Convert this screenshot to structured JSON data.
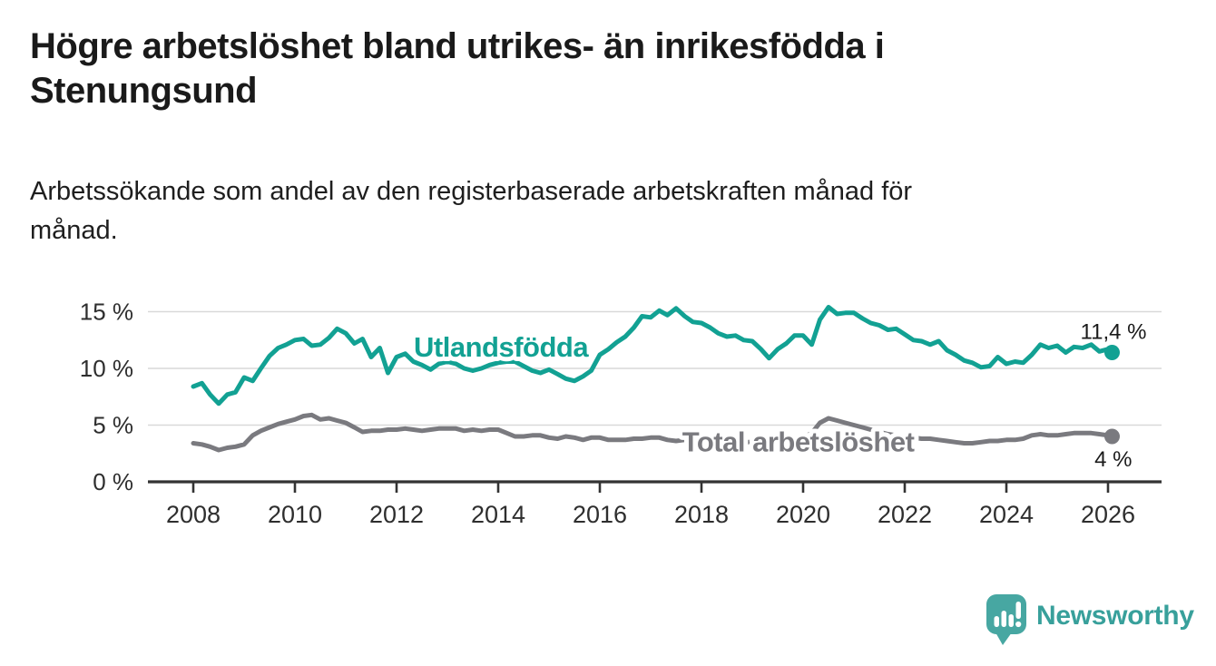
{
  "title": {
    "full": "Högre arbetslöshet bland utrikes- än inrikesfödda i Stenungsund",
    "line1": "Högre arbetslöshet bland utrikes- än inrikesfödda i",
    "line2": "Stenungsund"
  },
  "subtitle": {
    "full": "Arbetssökande som andel av den registerbaserade arbetskraften månad för månad.",
    "line1": "Arbetssökande som andel av den registerbaserade arbetskraften månad för",
    "line2": "månad."
  },
  "branding": {
    "name": "Newsworthy",
    "logo_color": "#47A7A2",
    "text_color": "#38A09B"
  },
  "chart_data": {
    "type": "line",
    "title": "Högre arbetslöshet bland utrikes- än inrikesfödda i Stenungsund",
    "subtitle": "Arbetssökande som andel av den registerbaserade arbetskraften månad för månad.",
    "xlabel": "",
    "ylabel": "",
    "x_range": [
      2007.1,
      2027.05
    ],
    "ylim": [
      0,
      16.5
    ],
    "grid": "horizontal",
    "legend_position": "inline-labels",
    "style": {
      "grid_color": "#d9d9d9",
      "axis_color": "#333333",
      "axis_text_color": "#2e2e2e",
      "annotation_text_color": "#1a1a1a"
    },
    "x_axis": {
      "ticks": [
        2008,
        2010,
        2012,
        2014,
        2016,
        2018,
        2020,
        2022,
        2024,
        2026
      ]
    },
    "y_axis": {
      "ticks": [
        {
          "value": 0,
          "label": "0 %"
        },
        {
          "value": 5,
          "label": "5 %"
        },
        {
          "value": 10,
          "label": "10 %"
        },
        {
          "value": 15,
          "label": "15 %"
        }
      ]
    },
    "series": [
      {
        "id": "utlandsfodda",
        "name": "Utlandsfödda",
        "color": "#12A193",
        "end_label": "11,4 %",
        "end_value": 11.4,
        "name_label": {
          "year": 2012.34,
          "value": 11.05
        },
        "end_label_offset": [
          38,
          -15
        ],
        "points": [
          [
            2008.0,
            8.4
          ],
          [
            2008.17,
            8.7
          ],
          [
            2008.33,
            7.7
          ],
          [
            2008.5,
            6.9
          ],
          [
            2008.67,
            7.7
          ],
          [
            2008.83,
            7.9
          ],
          [
            2009.0,
            9.2
          ],
          [
            2009.17,
            8.9
          ],
          [
            2009.33,
            10.0
          ],
          [
            2009.5,
            11.1
          ],
          [
            2009.67,
            11.8
          ],
          [
            2009.83,
            12.1
          ],
          [
            2010.0,
            12.5
          ],
          [
            2010.17,
            12.6
          ],
          [
            2010.33,
            12.0
          ],
          [
            2010.5,
            12.1
          ],
          [
            2010.67,
            12.7
          ],
          [
            2010.83,
            13.5
          ],
          [
            2011.0,
            13.1
          ],
          [
            2011.17,
            12.2
          ],
          [
            2011.33,
            12.6
          ],
          [
            2011.5,
            11.0
          ],
          [
            2011.67,
            11.8
          ],
          [
            2011.83,
            9.6
          ],
          [
            2012.0,
            11.0
          ],
          [
            2012.17,
            11.3
          ],
          [
            2012.33,
            10.6
          ],
          [
            2012.5,
            10.3
          ],
          [
            2012.67,
            9.9
          ],
          [
            2012.83,
            10.4
          ],
          [
            2013.0,
            10.6
          ],
          [
            2013.17,
            10.4
          ],
          [
            2013.33,
            10.0
          ],
          [
            2013.5,
            9.8
          ],
          [
            2013.67,
            10.0
          ],
          [
            2013.83,
            10.3
          ],
          [
            2014.0,
            10.5
          ],
          [
            2014.17,
            10.6
          ],
          [
            2014.33,
            10.6
          ],
          [
            2014.5,
            10.2
          ],
          [
            2014.67,
            9.8
          ],
          [
            2014.83,
            9.6
          ],
          [
            2015.0,
            9.9
          ],
          [
            2015.17,
            9.5
          ],
          [
            2015.33,
            9.1
          ],
          [
            2015.5,
            8.9
          ],
          [
            2015.67,
            9.3
          ],
          [
            2015.83,
            9.8
          ],
          [
            2016.0,
            11.2
          ],
          [
            2016.17,
            11.7
          ],
          [
            2016.33,
            12.3
          ],
          [
            2016.5,
            12.8
          ],
          [
            2016.67,
            13.6
          ],
          [
            2016.83,
            14.6
          ],
          [
            2017.0,
            14.5
          ],
          [
            2017.17,
            15.1
          ],
          [
            2017.33,
            14.7
          ],
          [
            2017.5,
            15.3
          ],
          [
            2017.67,
            14.6
          ],
          [
            2017.83,
            14.1
          ],
          [
            2018.0,
            14.0
          ],
          [
            2018.17,
            13.6
          ],
          [
            2018.33,
            13.1
          ],
          [
            2018.5,
            12.8
          ],
          [
            2018.67,
            12.9
          ],
          [
            2018.83,
            12.5
          ],
          [
            2019.0,
            12.4
          ],
          [
            2019.17,
            11.7
          ],
          [
            2019.33,
            10.9
          ],
          [
            2019.5,
            11.7
          ],
          [
            2019.67,
            12.2
          ],
          [
            2019.83,
            12.9
          ],
          [
            2020.0,
            12.9
          ],
          [
            2020.17,
            12.1
          ],
          [
            2020.33,
            14.3
          ],
          [
            2020.5,
            15.4
          ],
          [
            2020.67,
            14.8
          ],
          [
            2020.83,
            14.9
          ],
          [
            2021.0,
            14.9
          ],
          [
            2021.17,
            14.4
          ],
          [
            2021.33,
            14.0
          ],
          [
            2021.5,
            13.8
          ],
          [
            2021.67,
            13.4
          ],
          [
            2021.83,
            13.5
          ],
          [
            2022.0,
            13.0
          ],
          [
            2022.17,
            12.5
          ],
          [
            2022.33,
            12.4
          ],
          [
            2022.5,
            12.1
          ],
          [
            2022.67,
            12.4
          ],
          [
            2022.83,
            11.6
          ],
          [
            2023.0,
            11.2
          ],
          [
            2023.17,
            10.7
          ],
          [
            2023.33,
            10.5
          ],
          [
            2023.5,
            10.1
          ],
          [
            2023.67,
            10.2
          ],
          [
            2023.83,
            11.0
          ],
          [
            2024.0,
            10.4
          ],
          [
            2024.17,
            10.6
          ],
          [
            2024.33,
            10.5
          ],
          [
            2024.5,
            11.2
          ],
          [
            2024.67,
            12.1
          ],
          [
            2024.83,
            11.8
          ],
          [
            2025.0,
            12.0
          ],
          [
            2025.17,
            11.4
          ],
          [
            2025.33,
            11.9
          ],
          [
            2025.5,
            11.8
          ],
          [
            2025.67,
            12.1
          ],
          [
            2025.83,
            11.5
          ],
          [
            2026.0,
            11.7
          ],
          [
            2026.08,
            11.4
          ]
        ]
      },
      {
        "id": "total",
        "name": "Total arbetslöshet",
        "color": "#7A7A7F",
        "end_label": "4 %",
        "end_value": 4.0,
        "name_label": {
          "year": 2017.62,
          "value": 2.7
        },
        "end_label_offset": [
          22,
          33
        ],
        "points": [
          [
            2008.0,
            3.4
          ],
          [
            2008.17,
            3.3
          ],
          [
            2008.33,
            3.1
          ],
          [
            2008.5,
            2.8
          ],
          [
            2008.67,
            3.0
          ],
          [
            2008.83,
            3.1
          ],
          [
            2009.0,
            3.3
          ],
          [
            2009.17,
            4.1
          ],
          [
            2009.33,
            4.5
          ],
          [
            2009.5,
            4.8
          ],
          [
            2009.67,
            5.1
          ],
          [
            2009.83,
            5.3
          ],
          [
            2010.0,
            5.5
          ],
          [
            2010.17,
            5.8
          ],
          [
            2010.33,
            5.9
          ],
          [
            2010.5,
            5.5
          ],
          [
            2010.67,
            5.6
          ],
          [
            2010.83,
            5.4
          ],
          [
            2011.0,
            5.2
          ],
          [
            2011.17,
            4.8
          ],
          [
            2011.33,
            4.4
          ],
          [
            2011.5,
            4.5
          ],
          [
            2011.67,
            4.5
          ],
          [
            2011.83,
            4.6
          ],
          [
            2012.0,
            4.6
          ],
          [
            2012.17,
            4.7
          ],
          [
            2012.33,
            4.6
          ],
          [
            2012.5,
            4.5
          ],
          [
            2012.67,
            4.6
          ],
          [
            2012.83,
            4.7
          ],
          [
            2013.0,
            4.7
          ],
          [
            2013.17,
            4.7
          ],
          [
            2013.33,
            4.5
          ],
          [
            2013.5,
            4.6
          ],
          [
            2013.67,
            4.5
          ],
          [
            2013.83,
            4.6
          ],
          [
            2014.0,
            4.6
          ],
          [
            2014.17,
            4.3
          ],
          [
            2014.33,
            4.0
          ],
          [
            2014.5,
            4.0
          ],
          [
            2014.67,
            4.1
          ],
          [
            2014.83,
            4.1
          ],
          [
            2015.0,
            3.9
          ],
          [
            2015.17,
            3.8
          ],
          [
            2015.33,
            4.0
          ],
          [
            2015.5,
            3.9
          ],
          [
            2015.67,
            3.7
          ],
          [
            2015.83,
            3.9
          ],
          [
            2016.0,
            3.9
          ],
          [
            2016.17,
            3.7
          ],
          [
            2016.33,
            3.7
          ],
          [
            2016.5,
            3.7
          ],
          [
            2016.67,
            3.8
          ],
          [
            2016.83,
            3.8
          ],
          [
            2017.0,
            3.9
          ],
          [
            2017.17,
            3.9
          ],
          [
            2017.33,
            3.7
          ],
          [
            2017.5,
            3.6
          ],
          [
            2017.67,
            3.7
          ],
          [
            2017.83,
            3.6
          ],
          [
            2018.0,
            3.6
          ],
          [
            2018.17,
            3.5
          ],
          [
            2018.33,
            3.6
          ],
          [
            2018.5,
            3.6
          ],
          [
            2018.67,
            3.5
          ],
          [
            2018.83,
            3.5
          ],
          [
            2019.0,
            3.5
          ],
          [
            2019.17,
            3.6
          ],
          [
            2019.33,
            3.6
          ],
          [
            2019.5,
            3.7
          ],
          [
            2019.67,
            3.8
          ],
          [
            2019.83,
            3.8
          ],
          [
            2020.0,
            3.9
          ],
          [
            2020.17,
            4.3
          ],
          [
            2020.33,
            5.2
          ],
          [
            2020.5,
            5.6
          ],
          [
            2020.67,
            5.4
          ],
          [
            2020.83,
            5.2
          ],
          [
            2021.0,
            5.0
          ],
          [
            2021.17,
            4.8
          ],
          [
            2021.33,
            4.6
          ],
          [
            2021.5,
            4.4
          ],
          [
            2021.67,
            4.2
          ],
          [
            2021.83,
            4.1
          ],
          [
            2022.0,
            4.0
          ],
          [
            2022.17,
            3.9
          ],
          [
            2022.33,
            3.8
          ],
          [
            2022.5,
            3.8
          ],
          [
            2022.67,
            3.7
          ],
          [
            2022.83,
            3.6
          ],
          [
            2023.0,
            3.5
          ],
          [
            2023.17,
            3.4
          ],
          [
            2023.33,
            3.4
          ],
          [
            2023.5,
            3.5
          ],
          [
            2023.67,
            3.6
          ],
          [
            2023.83,
            3.6
          ],
          [
            2024.0,
            3.7
          ],
          [
            2024.17,
            3.7
          ],
          [
            2024.33,
            3.8
          ],
          [
            2024.5,
            4.1
          ],
          [
            2024.67,
            4.2
          ],
          [
            2024.83,
            4.1
          ],
          [
            2025.0,
            4.1
          ],
          [
            2025.17,
            4.2
          ],
          [
            2025.33,
            4.3
          ],
          [
            2025.5,
            4.3
          ],
          [
            2025.67,
            4.3
          ],
          [
            2025.83,
            4.2
          ],
          [
            2026.0,
            4.1
          ],
          [
            2026.08,
            4.0
          ]
        ]
      }
    ]
  }
}
